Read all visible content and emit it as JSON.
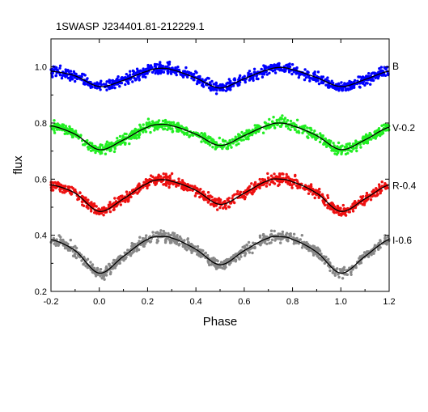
{
  "chart_data": {
    "type": "scatter",
    "title": "1SWASP J234401.81-212229.1",
    "xlabel": "Phase",
    "ylabel": "flux",
    "xlim": [
      -0.2,
      1.2
    ],
    "ylim": [
      0.2,
      1.1
    ],
    "xticks": [
      -0.2,
      0.0,
      0.2,
      0.4,
      0.6,
      0.8,
      1.0,
      1.2
    ],
    "yticks": [
      0.2,
      0.4,
      0.6,
      0.8,
      1.0
    ],
    "xtick_labels": [
      "-0.2",
      "0.0",
      "0.2",
      "0.4",
      "0.6",
      "0.8",
      "1.0",
      "1.2"
    ],
    "ytick_labels": [
      "0.2",
      "0.4",
      "0.6",
      "0.8",
      "1.0"
    ],
    "grid": false,
    "fit_line_color": "#000000",
    "series": [
      {
        "name": "B",
        "color": "#0000ff",
        "fit": [
          {
            "x": -0.2,
            "y": 0.985
          },
          {
            "x": -0.1,
            "y": 0.968
          },
          {
            "x": 0.0,
            "y": 0.93
          },
          {
            "x": 0.1,
            "y": 0.952
          },
          {
            "x": 0.2,
            "y": 0.985
          },
          {
            "x": 0.25,
            "y": 0.995
          },
          {
            "x": 0.3,
            "y": 0.99
          },
          {
            "x": 0.4,
            "y": 0.96
          },
          {
            "x": 0.5,
            "y": 0.925
          },
          {
            "x": 0.6,
            "y": 0.958
          },
          {
            "x": 0.7,
            "y": 0.99
          },
          {
            "x": 0.75,
            "y": 0.998
          },
          {
            "x": 0.8,
            "y": 0.99
          },
          {
            "x": 0.9,
            "y": 0.962
          },
          {
            "x": 1.0,
            "y": 0.93
          },
          {
            "x": 1.1,
            "y": 0.955
          },
          {
            "x": 1.2,
            "y": 0.985
          }
        ]
      },
      {
        "name": "V-0.2",
        "color": "#22ee22",
        "fit": [
          {
            "x": -0.2,
            "y": 0.79
          },
          {
            "x": -0.1,
            "y": 0.76
          },
          {
            "x": 0.0,
            "y": 0.705
          },
          {
            "x": 0.1,
            "y": 0.74
          },
          {
            "x": 0.2,
            "y": 0.785
          },
          {
            "x": 0.25,
            "y": 0.795
          },
          {
            "x": 0.3,
            "y": 0.79
          },
          {
            "x": 0.4,
            "y": 0.76
          },
          {
            "x": 0.5,
            "y": 0.72
          },
          {
            "x": 0.6,
            "y": 0.755
          },
          {
            "x": 0.7,
            "y": 0.792
          },
          {
            "x": 0.75,
            "y": 0.8
          },
          {
            "x": 0.8,
            "y": 0.79
          },
          {
            "x": 0.9,
            "y": 0.755
          },
          {
            "x": 1.0,
            "y": 0.705
          },
          {
            "x": 1.1,
            "y": 0.74
          },
          {
            "x": 1.2,
            "y": 0.785
          }
        ]
      },
      {
        "name": "R-0.4",
        "color": "#ee1111",
        "fit": [
          {
            "x": -0.2,
            "y": 0.58
          },
          {
            "x": -0.1,
            "y": 0.55
          },
          {
            "x": 0.0,
            "y": 0.485
          },
          {
            "x": 0.1,
            "y": 0.53
          },
          {
            "x": 0.2,
            "y": 0.585
          },
          {
            "x": 0.25,
            "y": 0.598
          },
          {
            "x": 0.3,
            "y": 0.592
          },
          {
            "x": 0.4,
            "y": 0.56
          },
          {
            "x": 0.5,
            "y": 0.51
          },
          {
            "x": 0.6,
            "y": 0.55
          },
          {
            "x": 0.7,
            "y": 0.595
          },
          {
            "x": 0.75,
            "y": 0.6
          },
          {
            "x": 0.8,
            "y": 0.59
          },
          {
            "x": 0.9,
            "y": 0.55
          },
          {
            "x": 1.0,
            "y": 0.485
          },
          {
            "x": 1.1,
            "y": 0.53
          },
          {
            "x": 1.2,
            "y": 0.58
          }
        ]
      },
      {
        "name": "I-0.6",
        "color": "#888888",
        "fit": [
          {
            "x": -0.2,
            "y": 0.385
          },
          {
            "x": -0.1,
            "y": 0.345
          },
          {
            "x": 0.0,
            "y": 0.265
          },
          {
            "x": 0.1,
            "y": 0.325
          },
          {
            "x": 0.2,
            "y": 0.385
          },
          {
            "x": 0.25,
            "y": 0.395
          },
          {
            "x": 0.3,
            "y": 0.39
          },
          {
            "x": 0.4,
            "y": 0.35
          },
          {
            "x": 0.5,
            "y": 0.295
          },
          {
            "x": 0.6,
            "y": 0.345
          },
          {
            "x": 0.7,
            "y": 0.39
          },
          {
            "x": 0.75,
            "y": 0.395
          },
          {
            "x": 0.8,
            "y": 0.385
          },
          {
            "x": 0.9,
            "y": 0.34
          },
          {
            "x": 1.0,
            "y": 0.265
          },
          {
            "x": 1.1,
            "y": 0.325
          },
          {
            "x": 1.2,
            "y": 0.385
          }
        ]
      }
    ]
  }
}
